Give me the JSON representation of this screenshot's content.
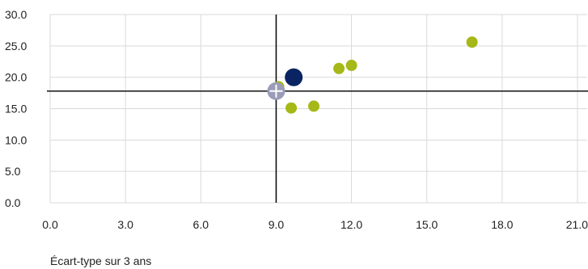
{
  "chart_data": {
    "type": "scatter",
    "xlabel": "Écart-type sur 3 ans",
    "ylabel": "",
    "xlim": [
      0,
      21
    ],
    "ylim": [
      0,
      30
    ],
    "x_ticks": [
      "0.0",
      "3.0",
      "6.0",
      "9.0",
      "12.0",
      "15.0",
      "18.0",
      "21.0"
    ],
    "y_ticks": [
      "0.0",
      "5.0",
      "10.0",
      "15.0",
      "20.0",
      "25.0",
      "30.0"
    ],
    "grid": true,
    "reference_lines": {
      "x": 9.0,
      "y": 17.8
    },
    "series": [
      {
        "color": "#a5b817",
        "points": [
          {
            "x": 9.1,
            "y": 18.5
          },
          {
            "x": 9.6,
            "y": 15.1
          },
          {
            "x": 10.5,
            "y": 15.4
          },
          {
            "x": 11.5,
            "y": 21.4
          },
          {
            "x": 12.0,
            "y": 21.9
          },
          {
            "x": 16.8,
            "y": 25.6
          }
        ]
      },
      {
        "color": "#0a2463",
        "points": [
          {
            "x": 9.7,
            "y": 20.0
          }
        ]
      },
      {
        "color": "#9a9cb8",
        "marker": "crosshair",
        "points": [
          {
            "x": 9.0,
            "y": 17.8
          }
        ]
      }
    ]
  }
}
